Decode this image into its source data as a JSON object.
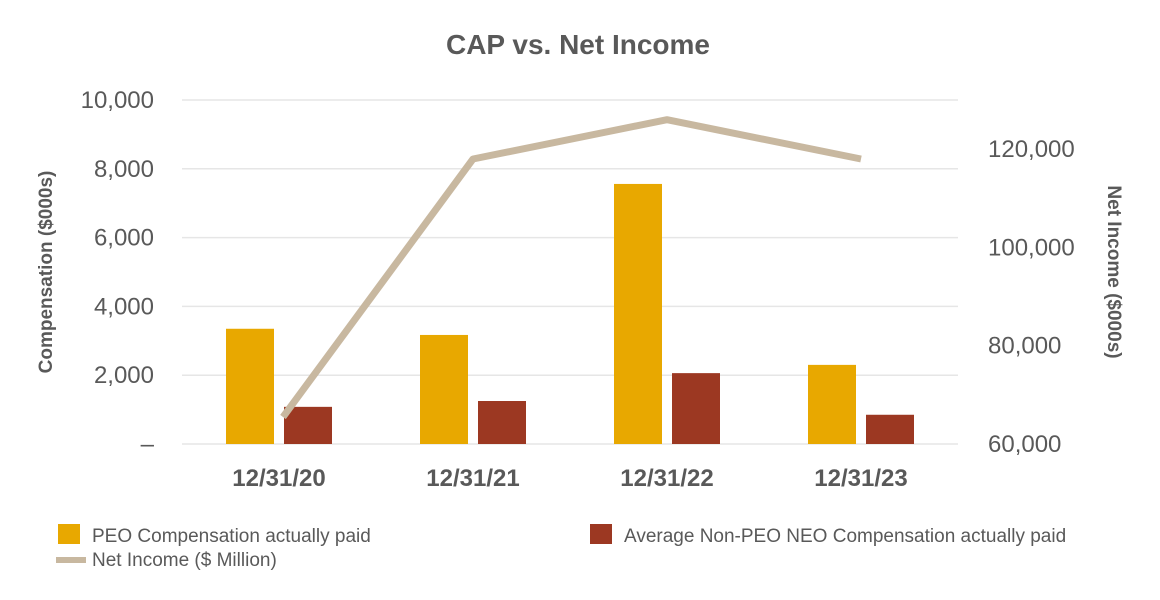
{
  "chart_data": {
    "type": "bar",
    "title": "CAP  vs. Net Income",
    "categories": [
      "12/31/20",
      "12/31/21",
      "12/31/22",
      "12/31/23"
    ],
    "ylabel": "Compensation ($000s)",
    "y2label": "Net Income ($000s)",
    "ylim": [
      0,
      10000
    ],
    "y2lim": [
      60000,
      130000
    ],
    "yticks": [
      0,
      2000,
      4000,
      6000,
      8000,
      10000
    ],
    "ytick_labels": [
      "–",
      "2,000",
      "4,000",
      "6,000",
      "8,000",
      "10,000"
    ],
    "y2ticks": [
      60000,
      80000,
      100000,
      120000
    ],
    "y2tick_labels": [
      "60,000",
      "80,000",
      "100,000",
      "120,000"
    ],
    "grid": true,
    "legend_position": "bottom",
    "series": [
      {
        "name": "PEO Compensation actually paid",
        "kind": "bar",
        "axis": "left",
        "color": "#e8a800",
        "values": [
          3350,
          3170,
          7560,
          2300
        ]
      },
      {
        "name": "Average Non-PEO NEO Compensation actually paid",
        "kind": "bar",
        "axis": "left",
        "color": "#9c3822",
        "values": [
          1080,
          1250,
          2060,
          850
        ]
      },
      {
        "name": "Net Income  ($ Million)",
        "kind": "line",
        "axis": "right",
        "color": "#c8b8a0",
        "values": [
          65500,
          118000,
          126000,
          118000
        ]
      }
    ]
  }
}
